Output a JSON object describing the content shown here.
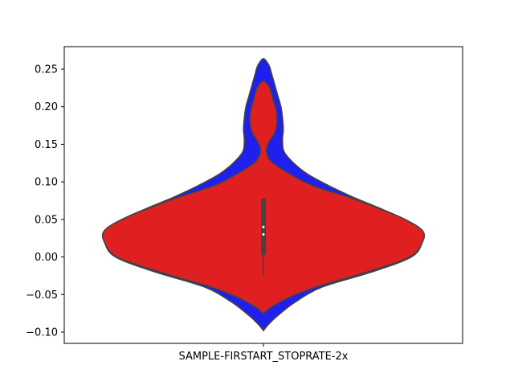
{
  "chart_data": {
    "type": "violin",
    "categories": [
      "SAMPLE-FIRSTART_STOPRATE-2x"
    ],
    "ylim": [
      -0.115,
      0.28
    ],
    "yticks": [
      -0.1,
      -0.05,
      0.0,
      0.05,
      0.1,
      0.15,
      0.2,
      0.25
    ],
    "ytick_labels": [
      "−0.10",
      "−0.05",
      "0.00",
      "0.05",
      "0.10",
      "0.15",
      "0.20",
      "0.25"
    ],
    "grid": false,
    "series": [
      {
        "color": "#1f1fee",
        "profile": [
          [
            -0.098,
            0.0
          ],
          [
            -0.09,
            0.03
          ],
          [
            -0.078,
            0.09
          ],
          [
            -0.06,
            0.2
          ],
          [
            -0.04,
            0.37
          ],
          [
            -0.02,
            0.68
          ],
          [
            0.0,
            0.93
          ],
          [
            0.02,
            1.0
          ],
          [
            0.035,
            1.0
          ],
          [
            0.05,
            0.89
          ],
          [
            0.065,
            0.73
          ],
          [
            0.08,
            0.56
          ],
          [
            0.095,
            0.41
          ],
          [
            0.11,
            0.28
          ],
          [
            0.125,
            0.19
          ],
          [
            0.14,
            0.13
          ],
          [
            0.155,
            0.12
          ],
          [
            0.17,
            0.125
          ],
          [
            0.185,
            0.12
          ],
          [
            0.2,
            0.11
          ],
          [
            0.215,
            0.09
          ],
          [
            0.23,
            0.07
          ],
          [
            0.245,
            0.05
          ],
          [
            0.255,
            0.035
          ],
          [
            0.264,
            0.0
          ]
        ]
      },
      {
        "color": "#e02020",
        "profile": [
          [
            -0.076,
            0.0
          ],
          [
            -0.068,
            0.04
          ],
          [
            -0.055,
            0.15
          ],
          [
            -0.04,
            0.33
          ],
          [
            -0.02,
            0.65
          ],
          [
            0.0,
            0.92
          ],
          [
            0.02,
            1.0
          ],
          [
            0.035,
            1.0
          ],
          [
            0.05,
            0.89
          ],
          [
            0.065,
            0.72
          ],
          [
            0.08,
            0.53
          ],
          [
            0.095,
            0.31
          ],
          [
            0.11,
            0.17
          ],
          [
            0.125,
            0.06
          ],
          [
            0.135,
            0.025
          ],
          [
            0.145,
            0.02
          ],
          [
            0.155,
            0.04
          ],
          [
            0.165,
            0.07
          ],
          [
            0.18,
            0.085
          ],
          [
            0.195,
            0.08
          ],
          [
            0.21,
            0.06
          ],
          [
            0.225,
            0.04
          ],
          [
            0.234,
            0.0
          ]
        ]
      }
    ],
    "inner_box": {
      "whisker_low": -0.025,
      "q1": 0.003,
      "median": 0.03,
      "q3": 0.078,
      "whisker_high": 0.078,
      "point": 0.04
    }
  }
}
